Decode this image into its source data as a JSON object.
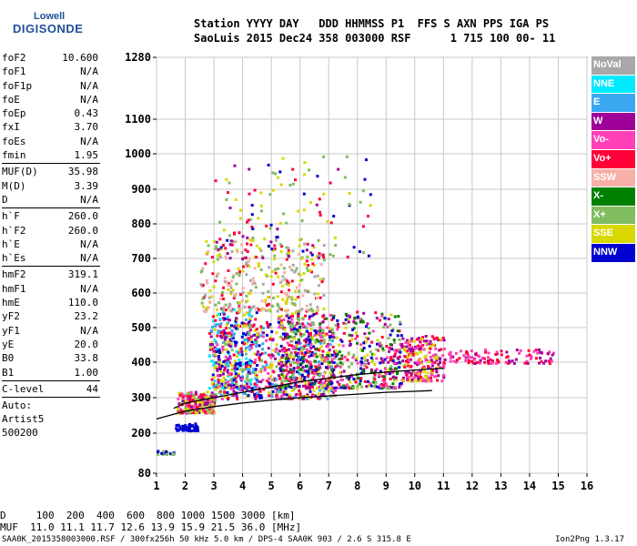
{
  "logo": {
    "line1": "Lowell",
    "line2": "DIGISONDE"
  },
  "header": {
    "line1": "Station YYYY DAY   DDD HHMMSS P1  FFS S AXN PPS IGA PS",
    "line2": "SaoLuis 2015 Dec24 358 003000 RSF      1 715 100 00- 11"
  },
  "params": {
    "group1": [
      {
        "name": "foF2",
        "value": "10.600"
      },
      {
        "name": "foF1",
        "value": "N/A"
      },
      {
        "name": "foF1p",
        "value": "N/A"
      },
      {
        "name": "foE",
        "value": "N/A"
      },
      {
        "name": "foEp",
        "value": "0.43"
      },
      {
        "name": "fxI",
        "value": "3.70"
      },
      {
        "name": "foEs",
        "value": "N/A"
      },
      {
        "name": "fmin",
        "value": "1.95"
      }
    ],
    "group2": [
      {
        "name": "MUF(D)",
        "value": "35.98"
      },
      {
        "name": "M(D)",
        "value": "3.39"
      },
      {
        "name": "D",
        "value": "N/A"
      }
    ],
    "group3": [
      {
        "name": "h`F",
        "value": "260.0"
      },
      {
        "name": "h`F2",
        "value": "260.0"
      },
      {
        "name": "h`E",
        "value": "N/A"
      },
      {
        "name": "h`Es",
        "value": "N/A"
      }
    ],
    "group4": [
      {
        "name": "hmF2",
        "value": "319.1"
      },
      {
        "name": "hmF1",
        "value": "N/A"
      },
      {
        "name": "hmE",
        "value": "110.0"
      },
      {
        "name": "yF2",
        "value": "23.2"
      },
      {
        "name": "yF1",
        "value": "N/A"
      },
      {
        "name": "yE",
        "value": "20.0"
      },
      {
        "name": "B0",
        "value": "33.8"
      },
      {
        "name": "B1",
        "value": "1.00"
      }
    ],
    "group5": [
      {
        "name": "C-level",
        "value": "44"
      }
    ],
    "auto": [
      "Auto:",
      "Artist5",
      "500200"
    ]
  },
  "legend": [
    {
      "label": "NoVal",
      "color": "#a8a8a8"
    },
    {
      "label": "NNE",
      "color": "#00eaff"
    },
    {
      "label": "E",
      "color": "#3aa8f0"
    },
    {
      "label": "W",
      "color": "#a0009a"
    },
    {
      "label": "Vo-",
      "color": "#ff40b8"
    },
    {
      "label": "Vo+",
      "color": "#ff0038"
    },
    {
      "label": "SSW",
      "color": "#f6b0a8"
    },
    {
      "label": "X-",
      "color": "#008000"
    },
    {
      "label": "X+",
      "color": "#80bc60"
    },
    {
      "label": "SSE",
      "color": "#d8d800"
    },
    {
      "label": "NNW",
      "color": "#0000d0"
    }
  ],
  "bottom": {
    "line1": "D     100  200  400  600  800 1000 1500 3000 [km]",
    "line2": "MUF  11.0 11.1 11.7 12.6 13.9 15.9 21.5 36.0 [MHz]"
  },
  "footer": {
    "left": "SAA0K_2015358003000.RSF / 300fx256h 50 kHz 5.0 km / DPS-4 SAA0K 903 / 2.6 S 315.8 E",
    "right": "Ion2Png 1.3.17"
  },
  "chart_data": {
    "type": "scatter",
    "xlim": [
      1,
      16
    ],
    "ylim": [
      80,
      1280
    ],
    "yscale": "nonlinear",
    "x_ticks": [
      1,
      2,
      3,
      4,
      5,
      6,
      7,
      8,
      9,
      10,
      11,
      12,
      13,
      14,
      15,
      16
    ],
    "y_ticks": [
      80,
      200,
      300,
      400,
      500,
      600,
      700,
      800,
      900,
      1000,
      1100,
      1280
    ],
    "grid": true,
    "legend_position": "right",
    "clusters": [
      {
        "x": [
          1.7,
          3.0
        ],
        "y": [
          260,
          320
        ],
        "n": 260,
        "colors": [
          "Vo+",
          "Vo-",
          "SSE",
          "X+",
          "W"
        ]
      },
      {
        "x": [
          2.8,
          4.5
        ],
        "y": [
          330,
          560
        ],
        "n": 260,
        "colors": [
          "E",
          "NNE",
          "Vo+",
          "NNW",
          "W",
          "SSE"
        ]
      },
      {
        "x": [
          3.0,
          7.2
        ],
        "y": [
          300,
          520
        ],
        "n": 650,
        "colors": [
          "Vo+",
          "Vo-",
          "W",
          "X+",
          "SSE",
          "E",
          "NNW"
        ]
      },
      {
        "x": [
          2.5,
          6.8
        ],
        "y": [
          550,
          760
        ],
        "n": 320,
        "colors": [
          "SSE",
          "X+",
          "SSW",
          "Vo+",
          "NoVal"
        ]
      },
      {
        "x": [
          5.2,
          9.5
        ],
        "y": [
          330,
          550
        ],
        "n": 650,
        "colors": [
          "Vo+",
          "Vo-",
          "W",
          "SSE",
          "X+",
          "X-",
          "NNW"
        ]
      },
      {
        "x": [
          3.0,
          8.5
        ],
        "y": [
          700,
          1000
        ],
        "n": 140,
        "colors": [
          "SSE",
          "Vo+",
          "W",
          "X+",
          "NNW"
        ]
      },
      {
        "x": [
          9.5,
          11.0
        ],
        "y": [
          350,
          480
        ],
        "n": 240,
        "colors": [
          "Vo+",
          "Vo-",
          "W",
          "SSE"
        ]
      },
      {
        "x": [
          11.0,
          14.8
        ],
        "y": [
          400,
          440
        ],
        "n": 110,
        "colors": [
          "Vo+",
          "W",
          "Vo-"
        ]
      },
      {
        "x": [
          1.6,
          2.4
        ],
        "y": [
          210,
          230
        ],
        "n": 50,
        "colors": [
          "NNW"
        ]
      },
      {
        "x": [
          1.0,
          1.6
        ],
        "y": [
          138,
          150
        ],
        "n": 18,
        "colors": [
          "NNW",
          "X+"
        ]
      }
    ],
    "curves": [
      {
        "name": "",
        "x": [
          1,
          2,
          3,
          4,
          5,
          6,
          7,
          8,
          9,
          10,
          10.6
        ],
        "y": [
          240,
          262,
          275,
          285,
          293,
          300,
          305,
          310,
          315,
          318,
          320
        ]
      },
      {
        "name": "",
        "x": [
          1.6,
          2,
          3,
          4,
          5,
          6,
          7,
          8,
          9,
          10,
          11
        ],
        "y": [
          270,
          285,
          300,
          315,
          330,
          345,
          355,
          365,
          372,
          378,
          383
        ]
      }
    ]
  }
}
